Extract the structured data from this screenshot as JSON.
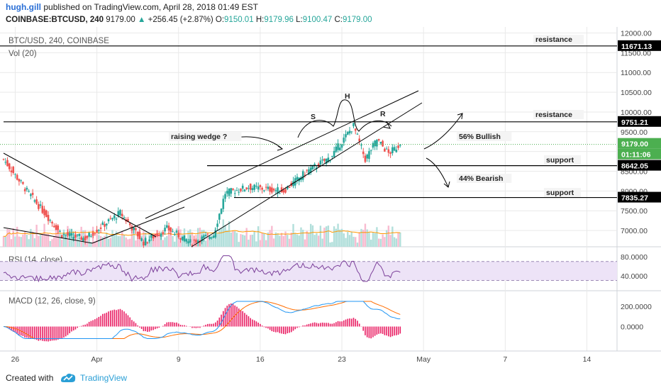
{
  "header": {
    "user": "hugh.gill",
    "published": "published on TradingView.com, April 28, 2018 01:49 EST",
    "symbol": "COINBASE:BTCUSD, 240",
    "last": "9179.00",
    "change_arrow": "▲",
    "change": "+256.45 (+2.87%)",
    "o_label": "O:",
    "o": "9150.01",
    "h_label": "H:",
    "h": "9179.96",
    "l_label": "L:",
    "l": "9100.47",
    "c_label": "C:",
    "c": "9179.00"
  },
  "panes": {
    "main_title": "BTC/USD, 240, COINBASE",
    "vol_title": "Vol (20)",
    "rsi_title": "RSI (14, close)",
    "macd_title": "MACD (12, 26, close, 9)"
  },
  "price_axis_ticks": [
    "12000.00",
    "11500.00",
    "11000.00",
    "10500.00",
    "10000.00",
    "9500.00",
    "9000.00",
    "8500.00",
    "8000.00",
    "7500.00",
    "7000.00"
  ],
  "rsi_axis_ticks": [
    "80.0000",
    "40.0000"
  ],
  "macd_axis_ticks": [
    "200.0000",
    "0.0000"
  ],
  "time_axis_ticks": [
    "26",
    "Apr",
    "9",
    "16",
    "23",
    "May",
    "7",
    "14"
  ],
  "price_badges": [
    {
      "text": "11671.13",
      "color": "#000000"
    },
    {
      "text": "9751.21",
      "color": "#000000"
    },
    {
      "text": "9179.00",
      "color": "#4caf50"
    },
    {
      "text": "01:11:06",
      "color": "#4caf50"
    },
    {
      "text": "8642.05",
      "color": "#000000"
    },
    {
      "text": "7835.27",
      "color": "#000000"
    }
  ],
  "annotations": {
    "resistance_top": "resistance",
    "resistance_mid": "resistance",
    "support_1": "support",
    "support_2": "support",
    "bullish": "56% Bullish",
    "bearish": "44% Bearish",
    "wedge": "raising wedge ?",
    "s": "S",
    "h": "H",
    "r": "R"
  },
  "footer": {
    "created": "Created with",
    "brand": "TradingView"
  },
  "colors": {
    "up": "#26a69a",
    "down": "#ef5350",
    "rsi_line": "#7b3f99",
    "rsi_band": "#ede3f7",
    "macd_line": "#2196f3",
    "signal_line": "#ff6d00",
    "hist": "#e91e63",
    "grid": "#e9e9e9"
  },
  "chart_data": {
    "type": "candlestick",
    "symbol": "BTCUSD",
    "exchange": "COINBASE",
    "timeframe": "240",
    "x_range": [
      "2018-03-25",
      "2018-05-20"
    ],
    "ylim": [
      6500,
      12200
    ],
    "price_keypoints": [
      {
        "date": "2018-03-25",
        "close": 8800
      },
      {
        "date": "2018-03-27",
        "close": 8000
      },
      {
        "date": "2018-03-30",
        "close": 6900
      },
      {
        "date": "2018-04-01",
        "close": 6800
      },
      {
        "date": "2018-04-04",
        "close": 7450
      },
      {
        "date": "2018-04-06",
        "close": 6700
      },
      {
        "date": "2018-04-08",
        "close": 7050
      },
      {
        "date": "2018-04-10",
        "close": 6700
      },
      {
        "date": "2018-04-12",
        "close": 6900
      },
      {
        "date": "2018-04-13",
        "close": 7950
      },
      {
        "date": "2018-04-15",
        "close": 8100
      },
      {
        "date": "2018-04-18",
        "close": 8000
      },
      {
        "date": "2018-04-20",
        "close": 8500
      },
      {
        "date": "2018-04-22",
        "close": 8850
      },
      {
        "date": "2018-04-24",
        "close": 9650
      },
      {
        "date": "2018-04-25",
        "close": 8800
      },
      {
        "date": "2018-04-26",
        "close": 9300
      },
      {
        "date": "2018-04-27",
        "close": 8950
      },
      {
        "date": "2018-04-28",
        "close": 9179
      }
    ],
    "last": {
      "open": 9150.01,
      "high": 9179.96,
      "low": 9100.47,
      "close": 9179.0,
      "change": 256.45,
      "change_pct": 2.87
    },
    "horizontal_levels": [
      {
        "label": "resistance",
        "price": 11671.13
      },
      {
        "label": "resistance",
        "price": 9751.21
      },
      {
        "label": "support",
        "price": 8642.05
      },
      {
        "label": "support",
        "price": 7835.27
      }
    ],
    "scenarios": [
      {
        "label": "56% Bullish",
        "direction": "up"
      },
      {
        "label": "44% Bearish",
        "direction": "down"
      }
    ],
    "indicators": [
      {
        "name": "Vol (20)"
      },
      {
        "name": "RSI (14, close)",
        "ylim": [
          20,
          90
        ],
        "band": [
          30,
          70
        ],
        "last": 47
      },
      {
        "name": "MACD (12, 26, close, 9)",
        "ylim": [
          -120,
          250
        ]
      }
    ]
  }
}
